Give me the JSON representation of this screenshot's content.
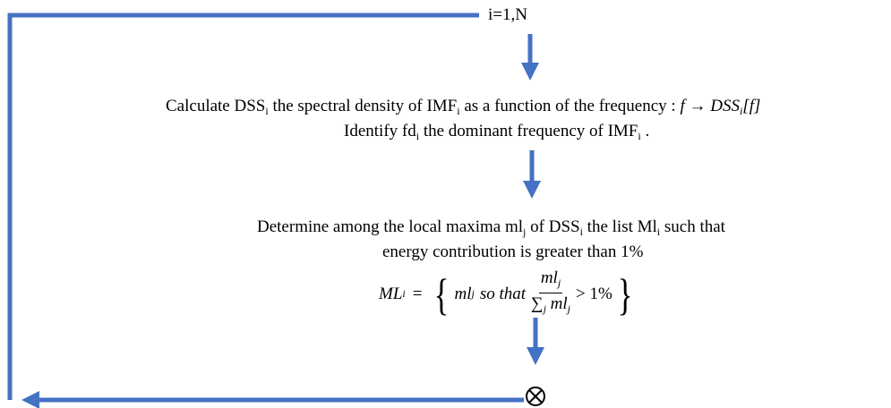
{
  "loop": {
    "label": "i=1,N"
  },
  "steps": [
    {
      "lines": [
        [
          "Calculate DSS",
          "i",
          " the spectral density of IMF",
          "i",
          " as a function of the frequency : ",
          "f → DSS",
          "i",
          "[f]"
        ],
        [
          "Identify fd",
          "i",
          " the dominant frequency of IMF",
          "i",
          " ."
        ]
      ]
    },
    {
      "lines": [
        [
          "Determine among the local maxima ml",
          "j",
          " of DSS",
          "i",
          " the list Ml",
          "i",
          " such that"
        ],
        [
          "energy contribution is greater than 1%"
        ]
      ],
      "formula": {
        "lhs": "ML",
        "lhs_sub": "i",
        "equals": "=",
        "open": "{",
        "item": "ml",
        "item_sub": "j",
        "so_that": "so that",
        "num": "ml",
        "num_sub": "j",
        "den_sum": "∑",
        "den_sum_sub": "j",
        "den": "ml",
        "den_sub": "j",
        "gt": "> 1%",
        "close": "}"
      }
    }
  ]
}
